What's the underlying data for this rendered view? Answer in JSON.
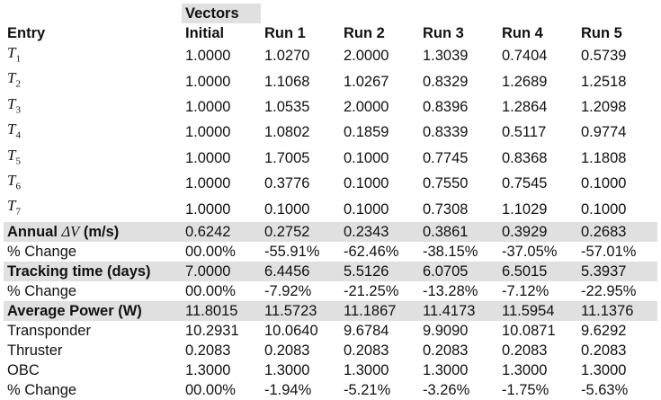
{
  "header": {
    "group_label": "Vectors",
    "columns": [
      "Entry",
      "Initial",
      "Run 1",
      "Run 2",
      "Run 3",
      "Run 4",
      "Run 5"
    ]
  },
  "vector_rows": [
    {
      "label": "T",
      "sub": "1",
      "values": [
        "1.0000",
        "1.0270",
        "2.0000",
        "1.3039",
        "0.7404",
        "0.5739"
      ]
    },
    {
      "label": "T",
      "sub": "2",
      "values": [
        "1.0000",
        "1.1068",
        "1.0267",
        "0.8329",
        "1.2689",
        "1.2518"
      ]
    },
    {
      "label": "T",
      "sub": "3",
      "values": [
        "1.0000",
        "1.0535",
        "2.0000",
        "0.8396",
        "1.2864",
        "1.2098"
      ]
    },
    {
      "label": "T",
      "sub": "4",
      "values": [
        "1.0000",
        "1.0802",
        "0.1859",
        "0.8339",
        "0.5117",
        "0.9774"
      ]
    },
    {
      "label": "T",
      "sub": "5",
      "values": [
        "1.0000",
        "1.7005",
        "0.1000",
        "0.7745",
        "0.8368",
        "1.1808"
      ]
    },
    {
      "label": "T",
      "sub": "6",
      "values": [
        "1.0000",
        "0.3776",
        "0.1000",
        "0.7550",
        "0.7545",
        "0.1000"
      ]
    },
    {
      "label": "T",
      "sub": "7",
      "values": [
        "1.0000",
        "0.1000",
        "0.1000",
        "0.7308",
        "1.1029",
        "0.1000"
      ]
    }
  ],
  "annual_dv": {
    "label_prefix": "Annual ",
    "label_symbol": "ΔV",
    "label_suffix": " (m/s)",
    "values": [
      "0.6242",
      "0.2752",
      "0.2343",
      "0.3861",
      "0.3929",
      "0.2683"
    ],
    "change_label": "% Change",
    "change_values": [
      "00.00%",
      "-55.91%",
      "-62.46%",
      "-38.15%",
      "-37.05%",
      "-57.01%"
    ]
  },
  "tracking_time": {
    "label": "Tracking time (days)",
    "values": [
      "7.0000",
      "6.4456",
      "5.5126",
      "6.0705",
      "6.5015",
      "5.3937"
    ],
    "change_label": "% Change",
    "change_values": [
      "00.00%",
      "-7.92%",
      "-21.25%",
      "-13.28%",
      "-7.12%",
      "-22.95%"
    ]
  },
  "average_power": {
    "label": "Average Power (W)",
    "values": [
      "11.8015",
      "11.5723",
      "11.1867",
      "11.4173",
      "11.5954",
      "11.1376"
    ],
    "components": [
      {
        "label": "Transponder",
        "values": [
          "10.2931",
          "10.0640",
          "9.6784",
          "9.9090",
          "10.0871",
          "9.6292"
        ]
      },
      {
        "label": "Thruster",
        "values": [
          "0.2083",
          "0.2083",
          "0.2083",
          "0.2083",
          "0.2083",
          "0.2083"
        ]
      },
      {
        "label": "OBC",
        "values": [
          "1.3000",
          "1.3000",
          "1.3000",
          "1.3000",
          "1.3000",
          "1.3000"
        ]
      }
    ],
    "change_label": "% Change",
    "change_values": [
      "00.00%",
      "-1.94%",
      "-5.21%",
      "-3.26%",
      "-1.75%",
      "-5.63%"
    ]
  }
}
